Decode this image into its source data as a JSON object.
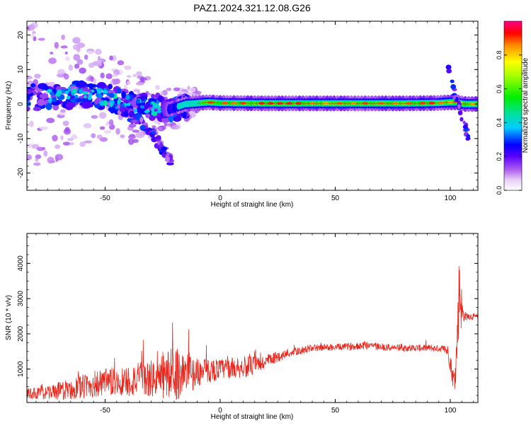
{
  "title": "PAZ1.2024.321.12.08.G26",
  "colors": {
    "snr_line": "#e8261c",
    "ridge": "#e8261c",
    "frame": "#000000"
  },
  "chart_data": [
    {
      "type": "heatmap",
      "xlabel": "Height of straight line (km)",
      "ylabel": "Frequency (Hz)",
      "xlim": [
        -84,
        112
      ],
      "ylim": [
        -25,
        24
      ],
      "x_ticks": [
        "-50",
        "0",
        "50",
        "100"
      ],
      "x_tick_values": [
        -50,
        0,
        50,
        100
      ],
      "y_ticks": [
        "20",
        "10",
        "0",
        "-10",
        "-20"
      ],
      "y_tick_values": [
        20,
        10,
        0,
        -10,
        -20
      ],
      "description_series": [
        {
          "name": "main ridge",
          "points": [
            [
              -82,
              2
            ],
            [
              -70,
              2
            ],
            [
              -60,
              3
            ],
            [
              -50,
              2
            ],
            [
              -40,
              0
            ],
            [
              -30,
              -1
            ],
            [
              -22,
              -1.5
            ],
            [
              -15,
              0
            ],
            [
              -5,
              0.5
            ],
            [
              0,
              0.3
            ],
            [
              20,
              0.2
            ],
            [
              50,
              0.2
            ],
            [
              80,
              0.2
            ],
            [
              95,
              0.3
            ],
            [
              100,
              0.5
            ],
            [
              103,
              0.5
            ],
            [
              106,
              0
            ],
            [
              112,
              0
            ]
          ]
        },
        {
          "name": "lower branch",
          "points": [
            [
              -45,
              -1
            ],
            [
              -38,
              -4
            ],
            [
              -30,
              -8
            ],
            [
              -25,
              -13
            ],
            [
              -21,
              -17
            ]
          ]
        }
      ]
    },
    {
      "type": "colorbar",
      "label": "Normalized spectral amplitude",
      "range": [
        0,
        1
      ],
      "ticks": [
        "0.0",
        "0.2",
        "0.4",
        "0.6",
        "0.8"
      ],
      "tick_values": [
        0.0,
        0.2,
        0.4,
        0.6,
        0.8
      ]
    },
    {
      "type": "line",
      "xlabel": "Height of straight line (km)",
      "ylabel": "SNR (10 * v/v)",
      "xlim": [
        -84,
        112
      ],
      "ylim": [
        50,
        4850
      ],
      "x_ticks": [
        "-50",
        "0",
        "50",
        "100"
      ],
      "x_tick_values": [
        -50,
        0,
        50,
        100
      ],
      "y_ticks": [
        "1000",
        "2000",
        "3000",
        "4000"
      ],
      "y_tick_values": [
        1000,
        2000,
        3000,
        4000
      ],
      "envelope": {
        "x": [
          -84,
          -75,
          -65,
          -55,
          -45,
          -35,
          -28,
          -24,
          -20,
          -15,
          -10,
          0,
          10,
          15,
          20,
          25,
          30,
          40,
          50,
          60,
          64,
          70,
          80,
          90,
          97,
          99,
          100,
          101,
          102,
          103,
          104,
          105,
          106,
          108,
          112
        ],
        "mean": [
          300,
          330,
          420,
          560,
          620,
          700,
          720,
          800,
          900,
          850,
          900,
          1000,
          1050,
          1100,
          1200,
          1350,
          1450,
          1600,
          1620,
          1650,
          1700,
          1620,
          1600,
          1600,
          1580,
          1500,
          1200,
          800,
          600,
          1800,
          3500,
          2600,
          2500,
          2500,
          2480
        ],
        "amp": [
          150,
          200,
          300,
          400,
          450,
          500,
          550,
          700,
          800,
          650,
          400,
          300,
          300,
          280,
          220,
          150,
          120,
          100,
          100,
          100,
          150,
          100,
          100,
          100,
          100,
          200,
          300,
          300,
          300,
          800,
          1200,
          600,
          150,
          100,
          80
        ]
      }
    }
  ]
}
